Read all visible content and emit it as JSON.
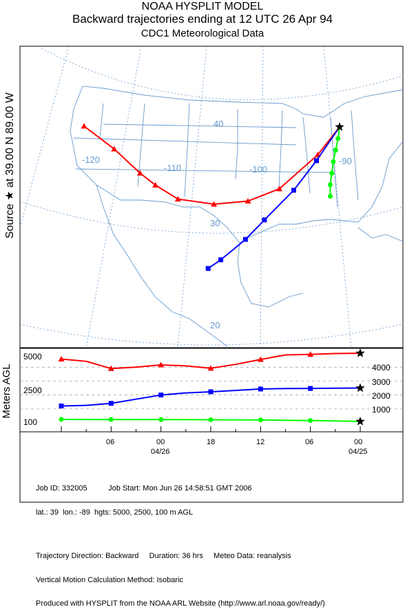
{
  "header": {
    "line1": "NOAA HYSPLIT MODEL",
    "line2": "Backward trajectories ending at 12 UTC 26 Apr 94",
    "line3": "CDC1 Meteorological Data"
  },
  "source_label": "Source ★ at   39.00 N   89.00 W",
  "map": {
    "lon_labels": [
      "-120",
      "-110",
      "-100",
      "-90"
    ],
    "lat_labels": [
      "40",
      "30",
      "20"
    ],
    "map_line_color": "#6699cc"
  },
  "chart_data": [
    {
      "type": "line",
      "title": "Backward trajectories ending at 12 UTC 26 Apr 94",
      "subtitle": "CDC1 Meteorological Data",
      "source": {
        "lat": 39.0,
        "lon": -89.0
      },
      "series": [
        {
          "name": "5000",
          "color": "#ff0000",
          "marker": "triangle",
          "points": [
            {
              "lon": -89.0,
              "lat": 39.0
            },
            {
              "lon": -91.5,
              "lat": 36.2
            },
            {
              "lon": -96.0,
              "lat": 32.8
            },
            {
              "lon": -99.8,
              "lat": 31.6
            },
            {
              "lon": -104.0,
              "lat": 31.3
            },
            {
              "lon": -108.5,
              "lat": 31.8
            },
            {
              "lon": -111.4,
              "lat": 33.2
            },
            {
              "lon": -113.4,
              "lat": 34.4
            },
            {
              "lon": -116.8,
              "lat": 36.8
            },
            {
              "lon": -120.7,
              "lat": 39.0
            }
          ]
        },
        {
          "name": "2500",
          "color": "#0000ff",
          "marker": "square",
          "points": [
            {
              "lon": -89.0,
              "lat": 39.0
            },
            {
              "lon": -91.6,
              "lat": 35.6
            },
            {
              "lon": -94.2,
              "lat": 32.6
            },
            {
              "lon": -97.6,
              "lat": 29.6
            },
            {
              "lon": -99.8,
              "lat": 27.6
            },
            {
              "lon": -102.7,
              "lat": 25.5
            },
            {
              "lon": -104.2,
              "lat": 24.6
            }
          ]
        },
        {
          "name": "100",
          "color": "#00ff00",
          "marker": "circle",
          "points": [
            {
              "lon": -89.0,
              "lat": 39.0
            },
            {
              "lon": -89.1,
              "lat": 37.8
            },
            {
              "lon": -89.3,
              "lat": 36.6
            },
            {
              "lon": -89.5,
              "lat": 35.4
            },
            {
              "lon": -89.6,
              "lat": 34.2
            },
            {
              "lon": -89.7,
              "lat": 33.0
            },
            {
              "lon": -89.6,
              "lat": 31.8
            }
          ]
        }
      ]
    },
    {
      "type": "line",
      "ylabel": "Meters AGL",
      "x_tick_labels": [
        "06",
        "00",
        "18",
        "12",
        "06",
        "00"
      ],
      "date_labels": [
        "04/26",
        "04/25"
      ],
      "y_left_ticks": [
        "5000",
        "2500",
        "100"
      ],
      "y_right_ticks": [
        "4000",
        "3000",
        "2000",
        "1000"
      ],
      "ylim": [
        0,
        5000
      ],
      "x_hours_back": [
        0,
        3,
        6,
        9,
        12,
        15,
        18,
        21,
        24,
        27,
        30,
        33,
        36
      ],
      "series": [
        {
          "name": "5000",
          "color": "#ff0000",
          "values": [
            5000,
            4980,
            4920,
            4880,
            4550,
            4200,
            3920,
            4090,
            4160,
            4000,
            3900,
            4420,
            4580
          ]
        },
        {
          "name": "2500",
          "color": "#0000ff",
          "values": [
            2500,
            2490,
            2470,
            2460,
            2430,
            2330,
            2230,
            2150,
            2000,
            1700,
            1400,
            1260,
            1210
          ]
        },
        {
          "name": "100",
          "color": "#00ff00",
          "values": [
            100,
            140,
            170,
            190,
            210,
            220,
            225,
            230,
            235,
            238,
            240,
            245,
            250
          ]
        }
      ]
    }
  ],
  "footer": {
    "line1": "Job ID: 332005          Job Start: Mon Jun 26 14:58:51 GMT 2006",
    "line2": "lat.: 39  lon.: -89  hgts: 5000, 2500, 100 m AGL",
    "line3": "Trajectory Direction: Backward     Duration: 36 hrs     Meteo Data: reanalysis",
    "line4": "Vertical Motion Calculation Method: Isobaric",
    "line5": "Produced with HYSPLIT from the NOAA ARL Website (http://www.arl.noaa.gov/ready/)"
  }
}
